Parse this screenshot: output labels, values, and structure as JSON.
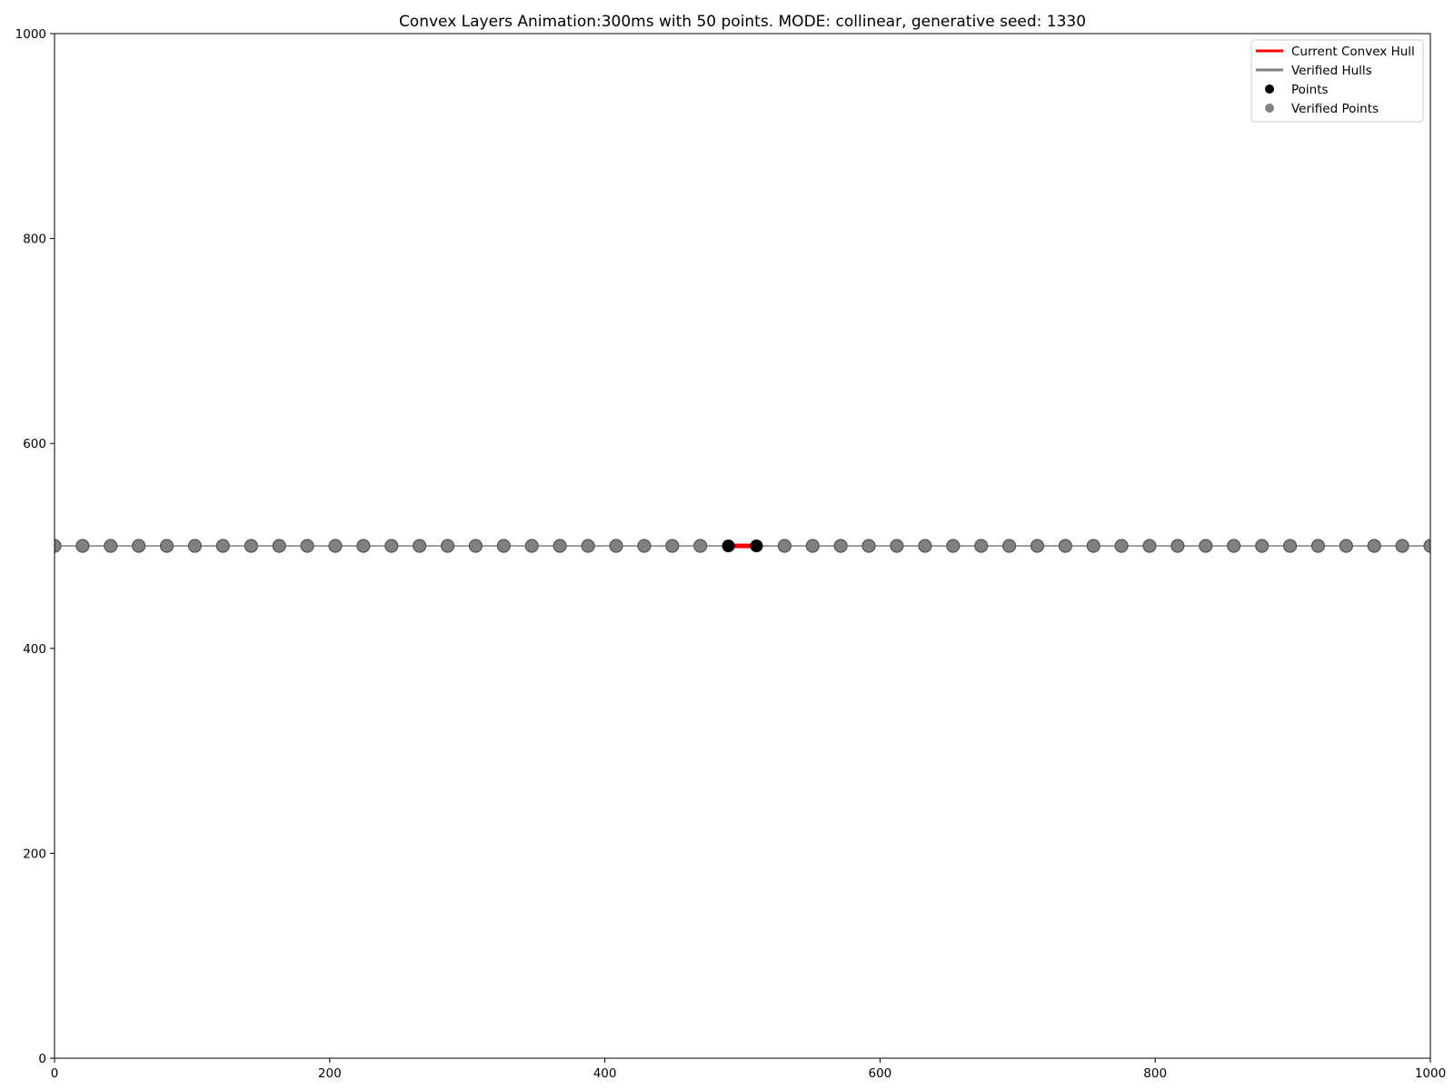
{
  "chart_data": {
    "type": "scatter",
    "title": "Convex Layers Animation:300ms with 50 points. MODE: collinear, generative seed: 1330",
    "xlabel": "",
    "ylabel": "",
    "xlim": [
      0,
      1000
    ],
    "ylim": [
      0,
      1000
    ],
    "xticks": [
      0,
      200,
      400,
      600,
      800,
      1000
    ],
    "yticks": [
      0,
      200,
      400,
      600,
      800,
      1000
    ],
    "grid": false,
    "legend_position": "top-right",
    "legend": [
      {
        "label": "Current Convex Hull",
        "kind": "line",
        "color": "#ff0000"
      },
      {
        "label": "Verified Hulls",
        "kind": "line",
        "color": "#808080"
      },
      {
        "label": "Points",
        "kind": "marker",
        "color": "#000000"
      },
      {
        "label": "Verified Points",
        "kind": "marker",
        "color": "#808080"
      }
    ],
    "verified_hull": {
      "color": "#808080",
      "x": [
        0,
        1000
      ],
      "y": [
        500,
        500
      ]
    },
    "current_hull": {
      "color": "#ff0000",
      "x": [
        489.8,
        510.2
      ],
      "y": [
        500,
        500
      ]
    },
    "points": {
      "color": "#000000",
      "x": [
        489.8,
        510.2
      ],
      "y": [
        500,
        500
      ]
    },
    "verified_points": {
      "color": "#808080",
      "x": [
        0,
        20.4,
        40.8,
        61.2,
        81.6,
        102.0,
        122.4,
        142.9,
        163.3,
        183.7,
        204.1,
        224.5,
        244.9,
        265.3,
        285.7,
        306.1,
        326.5,
        346.9,
        367.3,
        387.8,
        408.2,
        428.6,
        449.0,
        469.4,
        530.6,
        551.0,
        571.4,
        591.8,
        612.2,
        632.7,
        653.1,
        673.5,
        693.9,
        714.3,
        734.7,
        755.1,
        775.5,
        795.9,
        816.3,
        836.7,
        857.1,
        877.6,
        898.0,
        918.4,
        938.8,
        959.2,
        979.6,
        1000
      ],
      "y": [
        500,
        500,
        500,
        500,
        500,
        500,
        500,
        500,
        500,
        500,
        500,
        500,
        500,
        500,
        500,
        500,
        500,
        500,
        500,
        500,
        500,
        500,
        500,
        500,
        500,
        500,
        500,
        500,
        500,
        500,
        500,
        500,
        500,
        500,
        500,
        500,
        500,
        500,
        500,
        500,
        500,
        500,
        500,
        500,
        500,
        500,
        500,
        500
      ]
    }
  }
}
